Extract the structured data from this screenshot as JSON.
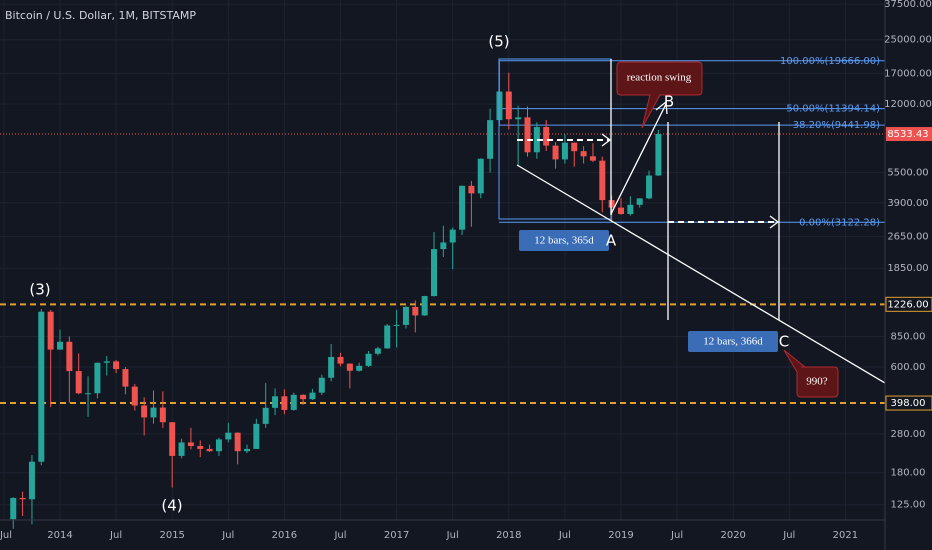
{
  "chart_data": {
    "type": "candlestick",
    "title": "Bitcoin / U.S. Dollar, 1M, BITSTAMP",
    "log": true,
    "grid": true,
    "up_color": "#26a69a",
    "down_color": "#ef5350",
    "categories": [
      "2013-08",
      "2013-09",
      "2013-10",
      "2013-11",
      "2013-12",
      "2014-01",
      "2014-02",
      "2014-03",
      "2014-04",
      "2014-05",
      "2014-06",
      "2014-07",
      "2014-08",
      "2014-09",
      "2014-10",
      "2014-11",
      "2014-12",
      "2015-01",
      "2015-02",
      "2015-03",
      "2015-04",
      "2015-05",
      "2015-06",
      "2015-07",
      "2015-08",
      "2015-09",
      "2015-10",
      "2015-11",
      "2015-12",
      "2016-01",
      "2016-02",
      "2016-03",
      "2016-04",
      "2016-05",
      "2016-06",
      "2016-07",
      "2016-08",
      "2016-09",
      "2016-10",
      "2016-11",
      "2016-12",
      "2017-01",
      "2017-02",
      "2017-03",
      "2017-04",
      "2017-05",
      "2017-06",
      "2017-07",
      "2017-08",
      "2017-09",
      "2017-10",
      "2017-11",
      "2017-12",
      "2018-01",
      "2018-02",
      "2018-03",
      "2018-04",
      "2018-05",
      "2018-06",
      "2018-07",
      "2018-08",
      "2018-09",
      "2018-10",
      "2018-11",
      "2018-12",
      "2019-01",
      "2019-02",
      "2019-03",
      "2019-04",
      "2019-05"
    ],
    "open": [
      106,
      135,
      133,
      204,
      1127,
      732,
      800,
      573,
      445,
      445,
      630,
      640,
      586,
      480,
      387,
      338,
      378,
      320,
      218,
      254,
      244,
      236,
      230,
      263,
      284,
      230,
      236,
      314,
      377,
      430,
      368,
      437,
      416,
      448,
      531,
      673,
      624,
      575,
      608,
      698,
      742,
      963,
      970,
      1190,
      1080,
      1347,
      2300,
      2480,
      2870,
      4730,
      4340,
      6440,
      10000,
      13850,
      10100,
      10320,
      6930,
      9240,
      7480,
      6390,
      7730,
      7020,
      6620,
      6300,
      4020,
      3690,
      3430,
      3810,
      4100,
      5320
    ],
    "high": [
      136,
      145,
      220,
      1163,
      1150,
      918,
      850,
      700,
      540,
      630,
      680,
      650,
      600,
      495,
      425,
      460,
      455,
      320,
      265,
      300,
      260,
      248,
      268,
      318,
      285,
      248,
      333,
      500,
      470,
      465,
      448,
      440,
      468,
      550,
      780,
      705,
      625,
      630,
      720,
      755,
      980,
      1150,
      1200,
      1280,
      1350,
      2790,
      3000,
      2940,
      4750,
      5000,
      6470,
      11400,
      19666,
      17170,
      11790,
      11680,
      9750,
      10000,
      7770,
      8500,
      7760,
      7420,
      7680,
      6600,
      4230,
      4110,
      4200,
      4100,
      5630,
      8940
    ],
    "low": [
      95,
      110,
      100,
      196,
      380,
      730,
      400,
      440,
      340,
      420,
      545,
      560,
      440,
      365,
      275,
      315,
      300,
      152,
      212,
      235,
      215,
      228,
      218,
      254,
      198,
      225,
      236,
      300,
      347,
      350,
      365,
      390,
      412,
      436,
      510,
      605,
      470,
      570,
      600,
      685,
      740,
      750,
      930,
      890,
      1075,
      1340,
      2100,
      1830,
      2700,
      2970,
      4110,
      5500,
      9380,
      9000,
      5920,
      6600,
      6430,
      7040,
      5750,
      6090,
      5880,
      6100,
      6200,
      3500,
      3122,
      3400,
      3370,
      3690,
      4060,
      5300
    ],
    "close": [
      135,
      133,
      204,
      1127,
      732,
      800,
      573,
      445,
      445,
      630,
      640,
      586,
      480,
      387,
      338,
      378,
      320,
      218,
      254,
      244,
      236,
      230,
      263,
      284,
      230,
      236,
      314,
      377,
      430,
      368,
      437,
      416,
      448,
      531,
      673,
      624,
      575,
      608,
      698,
      742,
      963,
      970,
      1190,
      1080,
      1347,
      2300,
      2480,
      2870,
      4730,
      4340,
      6440,
      10000,
      13850,
      10100,
      10320,
      6930,
      9240,
      7480,
      6390,
      7730,
      7020,
      6620,
      6300,
      4020,
      3690,
      3430,
      3810,
      4100,
      5320,
      8533.43
    ],
    "ylim": [
      105,
      39300
    ],
    "yticks": [
      {
        "value": 37500,
        "label": "37500.00"
      },
      {
        "value": 25000,
        "label": "25000.00"
      },
      {
        "value": 17000,
        "label": "17000.00"
      },
      {
        "value": 12000,
        "label": "12000.00"
      },
      {
        "value": 5500,
        "label": "5500.00"
      },
      {
        "value": 3900,
        "label": "3900.00"
      },
      {
        "value": 2650,
        "label": "2650.00"
      },
      {
        "value": 1850,
        "label": "1850.00"
      },
      {
        "value": 850,
        "label": "850.00"
      },
      {
        "value": 600,
        "label": "600.00"
      },
      {
        "value": 280,
        "label": "280.00"
      },
      {
        "value": 180,
        "label": "180.00"
      },
      {
        "value": 125,
        "label": "125.00"
      }
    ],
    "xticks": [
      {
        "value": "2013-07",
        "label": "Jul"
      },
      {
        "value": "2014-01",
        "label": "2014"
      },
      {
        "value": "2014-07",
        "label": "Jul"
      },
      {
        "value": "2015-01",
        "label": "2015"
      },
      {
        "value": "2015-07",
        "label": "Jul"
      },
      {
        "value": "2016-01",
        "label": "2016"
      },
      {
        "value": "2016-07",
        "label": "Jul"
      },
      {
        "value": "2017-01",
        "label": "2017"
      },
      {
        "value": "2017-07",
        "label": "Jul"
      },
      {
        "value": "2018-01",
        "label": "2018"
      },
      {
        "value": "2018-07",
        "label": "Jul"
      },
      {
        "value": "2019-01",
        "label": "2019"
      },
      {
        "value": "2019-07",
        "label": "Jul"
      },
      {
        "value": "2020-01",
        "label": "2020"
      },
      {
        "value": "2020-07",
        "label": "Jul"
      },
      {
        "value": "2021-01",
        "label": "2021"
      }
    ],
    "levels": [
      {
        "value": 1226,
        "label": "1226.00",
        "color": "#e0a030"
      },
      {
        "value": 398,
        "label": "398.00",
        "color": "#e0a030"
      }
    ],
    "last_price": {
      "value": 8533.43,
      "label": "8533.43",
      "color": "#ef5350"
    },
    "fib_color": "#5b9cf6",
    "fib_levels": [
      {
        "value": 19666,
        "label": "100.00%(19666.00)"
      },
      {
        "value": 11394.14,
        "label": "50.00%(11394.14)"
      },
      {
        "value": 9441.98,
        "label": "38.20%(9441.98)"
      },
      {
        "value": 3122.28,
        "label": "0.00%(3122.28)"
      }
    ],
    "annotations": [
      "(3)",
      "(4)",
      "(5)",
      "A",
      "B",
      "C",
      "12 bars, 365d",
      "12 bars, 366d",
      "reaction swing",
      "990?"
    ]
  }
}
